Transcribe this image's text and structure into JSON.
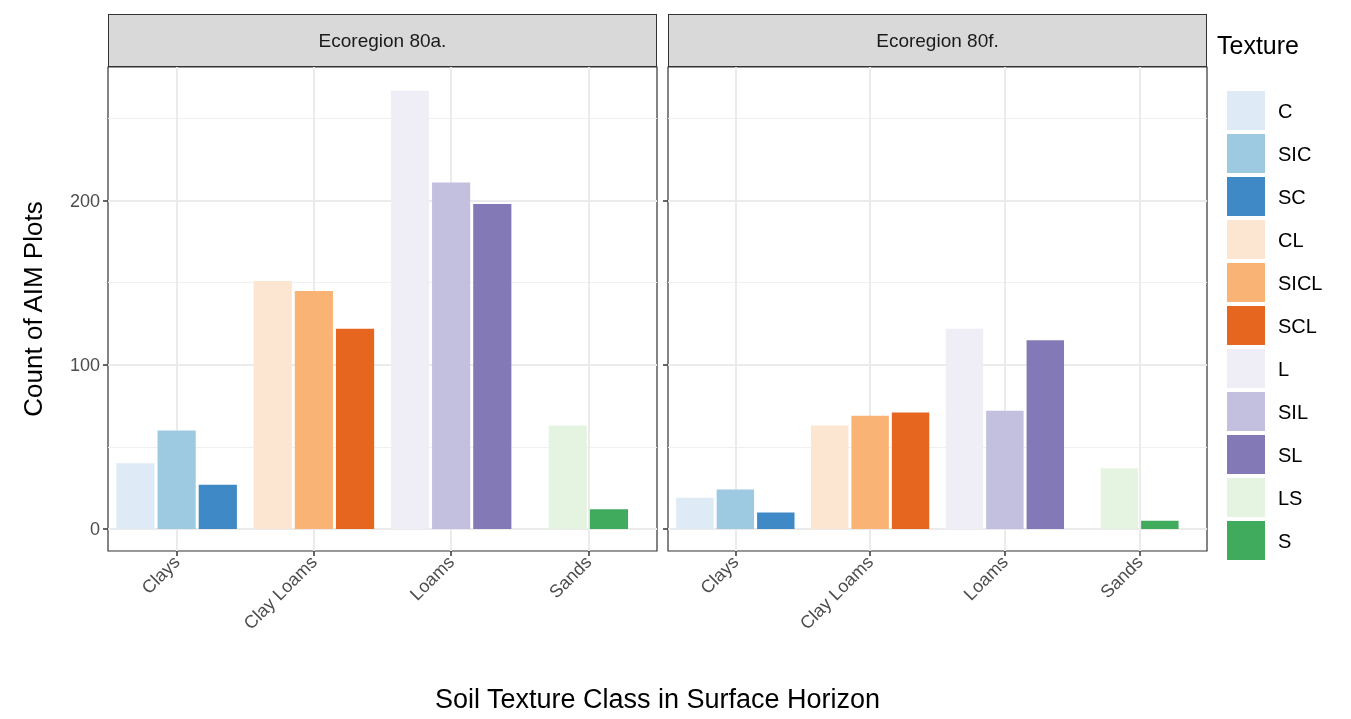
{
  "chart_data": [
    {
      "type": "bar",
      "title": "Ecoregion 80a.",
      "xlabel": "Soil Texture Class in Surface Horizon",
      "ylabel": "Count of AIM Plots",
      "categories": [
        "Clays",
        "Clay Loams",
        "Loams",
        "Sands"
      ],
      "series": [
        {
          "color": "#deebf7",
          "values": [
            40,
            null,
            null,
            null
          ]
        },
        {
          "color": "#9ecae1",
          "values": [
            60,
            null,
            null,
            null
          ]
        },
        {
          "color": "#3f8ac6",
          "values": [
            27,
            null,
            null,
            null
          ]
        },
        {
          "color": "#fde6d1",
          "values": [
            null,
            151,
            null,
            null
          ]
        },
        {
          "color": "#f9b374",
          "values": [
            null,
            145,
            null,
            null
          ]
        },
        {
          "color": "#e6661f",
          "values": [
            null,
            122,
            null,
            null
          ]
        },
        {
          "color": "#efedf5",
          "values": [
            null,
            null,
            267,
            null
          ]
        },
        {
          "color": "#c2c0de",
          "values": [
            null,
            null,
            211,
            null
          ]
        },
        {
          "color": "#8379b7",
          "values": [
            null,
            null,
            198,
            null
          ]
        },
        {
          "color": "#e5f4e1",
          "values": [
            null,
            null,
            null,
            63
          ]
        },
        {
          "color": "#41ab5d",
          "values": [
            null,
            null,
            null,
            12
          ]
        }
      ],
      "ylim": [
        -13.4,
        281.4
      ],
      "yticks": [
        0,
        100,
        200
      ],
      "grid": true,
      "legend": false
    },
    {
      "type": "bar",
      "title": "Ecoregion 80f.",
      "legend_title": "Texture",
      "categories": [
        "Clays",
        "Clay Loams",
        "Loams",
        "Sands"
      ],
      "series": [
        {
          "name": "C",
          "color": "#deebf7",
          "values": [
            19,
            null,
            null,
            null
          ]
        },
        {
          "name": "SIC",
          "color": "#9ecae1",
          "values": [
            24,
            null,
            null,
            null
          ]
        },
        {
          "name": "SC",
          "color": "#3f8ac6",
          "values": [
            10,
            null,
            null,
            null
          ]
        },
        {
          "name": "CL",
          "color": "#fde6d1",
          "values": [
            null,
            63,
            null,
            null
          ]
        },
        {
          "name": "SICL",
          "color": "#f9b374",
          "values": [
            null,
            69,
            null,
            null
          ]
        },
        {
          "name": "SCL",
          "color": "#e6661f",
          "values": [
            null,
            71,
            null,
            null
          ]
        },
        {
          "name": "L",
          "color": "#efedf5",
          "values": [
            null,
            null,
            122,
            null
          ]
        },
        {
          "name": "SIL",
          "color": "#c2c0de",
          "values": [
            null,
            null,
            72,
            null
          ]
        },
        {
          "name": "SL",
          "color": "#8379b7",
          "values": [
            null,
            null,
            115,
            null
          ]
        },
        {
          "name": "LS",
          "color": "#e5f4e1",
          "values": [
            null,
            null,
            null,
            37
          ]
        },
        {
          "name": "S",
          "color": "#41ab5d",
          "values": [
            null,
            null,
            null,
            5
          ]
        }
      ],
      "ylim": [
        -13.4,
        281.4
      ],
      "yticks": [
        0,
        100,
        200
      ],
      "grid": true,
      "legend": "right",
      "tick_labels": "x"
    }
  ]
}
